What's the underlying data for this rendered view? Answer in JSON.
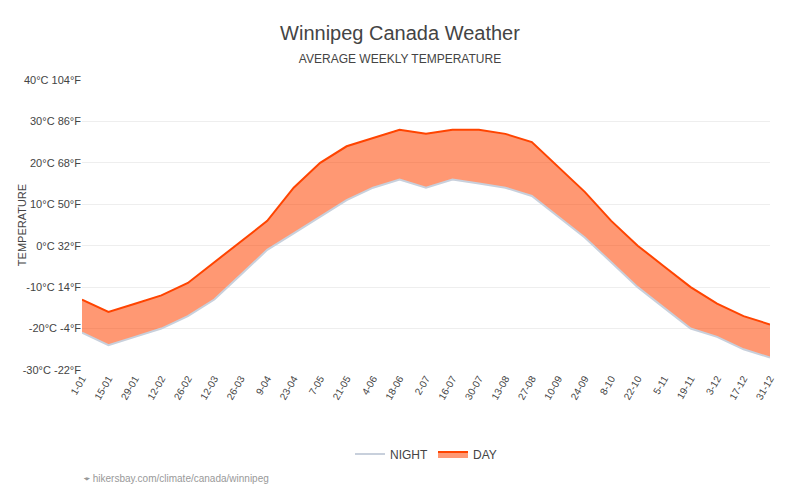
{
  "chart_data": {
    "type": "range_area",
    "title": "Winnipeg Canada Weather",
    "subtitle": "AVERAGE WEEKLY TEMPERATURE",
    "ylabel": "TEMPERATURE",
    "annotations": [
      "⌖ hikersbay.com/climate/canada/winnipeg"
    ],
    "categories": [
      "1-01",
      "15-01",
      "29-01",
      "12-02",
      "26-02",
      "12-03",
      "26-03",
      "9-04",
      "23-04",
      "7-05",
      "21-05",
      "4-06",
      "18-06",
      "2-07",
      "16-07",
      "30-07",
      "13-08",
      "27-08",
      "10-09",
      "24-09",
      "8-10",
      "22-10",
      "5-11",
      "19-11",
      "3-12",
      "17-12",
      "31-12"
    ],
    "series": [
      {
        "name": "DAY",
        "color": "#ff4400",
        "values": [
          -13,
          -16,
          -14,
          -12,
          -9,
          -4,
          1,
          6,
          14,
          20,
          24,
          26,
          28,
          27,
          28,
          28,
          27,
          25,
          19,
          13,
          6,
          0,
          -5,
          -10,
          -14,
          -17,
          -19
        ]
      },
      {
        "name": "NIGHT",
        "color": "#c8d0dc",
        "values": [
          -21,
          -24,
          -22,
          -20,
          -17,
          -13,
          -7,
          -1,
          3,
          7,
          11,
          14,
          16,
          14,
          16,
          15,
          14,
          12,
          7,
          2,
          -4,
          -10,
          -15,
          -20,
          -22,
          -25,
          -27
        ]
      }
    ],
    "ylim": [
      -30,
      40
    ],
    "yticks": [
      {
        "value": -30,
        "label": "-30°C -22°F"
      },
      {
        "value": -20,
        "label": "-20°C -4°F"
      },
      {
        "value": -10,
        "label": "-10°C 14°F"
      },
      {
        "value": 0,
        "label": "0°C 32°F"
      },
      {
        "value": 10,
        "label": "10°C 50°F"
      },
      {
        "value": 20,
        "label": "20°C 68°F"
      },
      {
        "value": 30,
        "label": "30°C 86°F"
      },
      {
        "value": 40,
        "label": "40°C 104°F"
      }
    ],
    "grid": true,
    "legend": "bottom"
  }
}
